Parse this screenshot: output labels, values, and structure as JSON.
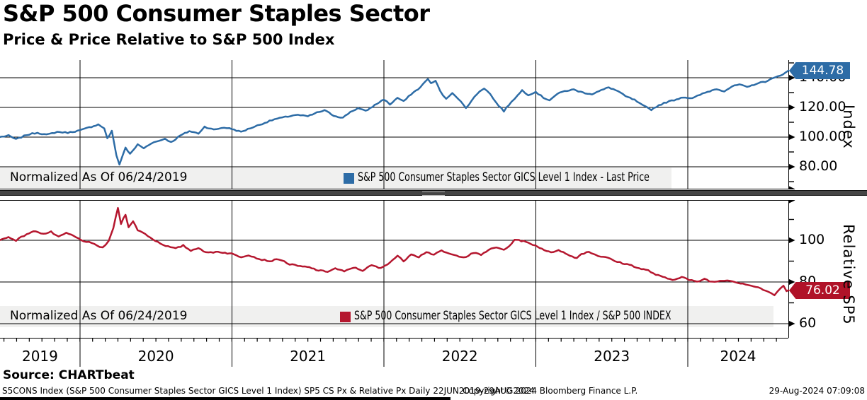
{
  "header": {
    "title": "S&P 500 Consumer Staples Sector",
    "subtitle": "Price & Price Relative to S&P 500 Index"
  },
  "colors": {
    "price_line": "#2d6ca6",
    "relative_line": "#b5172f",
    "badge_price_bg": "#2d6ca6",
    "badge_relative_bg": "#b01228",
    "legend_bg": "#f0f0ef",
    "grid": "#000000",
    "divider": "#454545"
  },
  "source_line": "Source: CHARTbeat",
  "footer": {
    "left": "S5CONS Index (S&P 500 Consumer Staples Sector GICS Level 1 Index) SP5 CS Px & Relative Px  Daily 22JUN2019-29AUG2024",
    "center": "Copyright© 2024 Bloomberg Finance L.P.",
    "right": "29-Aug-2024 07:09:08"
  },
  "x_axis": {
    "year_labels": [
      "2019",
      "2020",
      "2021",
      "2022",
      "2023",
      "2024"
    ],
    "range_decimal_years": [
      2019.474,
      2024.662
    ]
  },
  "chart_data": [
    {
      "type": "line",
      "panel": "top",
      "series_name": "S&P 500 Consumer Staples Sector GICS Level 1 Index - Last Price",
      "axis_label": "Index",
      "last_price": "144.78",
      "legend": {
        "normalized_label": "Normalized As Of 06/24/2019",
        "series_label": "S&P 500 Consumer Staples Sector GICS Level 1 Index - Last Price"
      },
      "y_ticks": [
        {
          "v": 140,
          "label": "140.00"
        },
        {
          "v": 120,
          "label": "120.00"
        },
        {
          "v": 100,
          "label": "100.00"
        },
        {
          "v": 80,
          "label": "80.00"
        }
      ],
      "y_minor": [
        70,
        90,
        110,
        130,
        150
      ],
      "ylim": [
        65,
        152
      ],
      "grid": true,
      "legend_position": "bottom-left",
      "points": [
        [
          2019.47,
          100
        ],
        [
          2019.53,
          101
        ],
        [
          2019.58,
          98.5
        ],
        [
          2019.65,
          101.5
        ],
        [
          2019.72,
          103
        ],
        [
          2019.78,
          101.5
        ],
        [
          2019.85,
          103.5
        ],
        [
          2019.92,
          103
        ],
        [
          2020.0,
          104.5
        ],
        [
          2020.06,
          106.5
        ],
        [
          2020.12,
          108.5
        ],
        [
          2020.16,
          106
        ],
        [
          2020.18,
          99
        ],
        [
          2020.21,
          104
        ],
        [
          2020.24,
          88
        ],
        [
          2020.26,
          81.5
        ],
        [
          2020.3,
          93
        ],
        [
          2020.33,
          88.5
        ],
        [
          2020.38,
          95
        ],
        [
          2020.42,
          92.5
        ],
        [
          2020.47,
          96
        ],
        [
          2020.52,
          97.5
        ],
        [
          2020.56,
          99
        ],
        [
          2020.6,
          96.5
        ],
        [
          2020.66,
          101
        ],
        [
          2020.72,
          104
        ],
        [
          2020.78,
          102.5
        ],
        [
          2020.82,
          107
        ],
        [
          2020.88,
          105
        ],
        [
          2020.95,
          106.5
        ],
        [
          2021.0,
          105.5
        ],
        [
          2021.06,
          103.5
        ],
        [
          2021.12,
          106
        ],
        [
          2021.2,
          109
        ],
        [
          2021.28,
          112
        ],
        [
          2021.35,
          113.5
        ],
        [
          2021.42,
          115
        ],
        [
          2021.5,
          114
        ],
        [
          2021.56,
          116.5
        ],
        [
          2021.61,
          118
        ],
        [
          2021.67,
          114.5
        ],
        [
          2021.73,
          113
        ],
        [
          2021.78,
          117
        ],
        [
          2021.83,
          119.5
        ],
        [
          2021.88,
          117.5
        ],
        [
          2021.94,
          121.5
        ],
        [
          2022.0,
          125.5
        ],
        [
          2022.04,
          122
        ],
        [
          2022.09,
          126.5
        ],
        [
          2022.13,
          124
        ],
        [
          2022.18,
          129
        ],
        [
          2022.24,
          133.5
        ],
        [
          2022.29,
          139.5
        ],
        [
          2022.31,
          136
        ],
        [
          2022.34,
          138
        ],
        [
          2022.37,
          131
        ],
        [
          2022.41,
          125.5
        ],
        [
          2022.45,
          130
        ],
        [
          2022.49,
          126
        ],
        [
          2022.54,
          119.5
        ],
        [
          2022.58,
          125
        ],
        [
          2022.63,
          131
        ],
        [
          2022.66,
          133
        ],
        [
          2022.7,
          129
        ],
        [
          2022.74,
          123
        ],
        [
          2022.79,
          117.5
        ],
        [
          2022.84,
          124
        ],
        [
          2022.88,
          128
        ],
        [
          2022.91,
          131.5
        ],
        [
          2022.95,
          128.5
        ],
        [
          2023.0,
          130.5
        ],
        [
          2023.05,
          126.5
        ],
        [
          2023.09,
          125
        ],
        [
          2023.14,
          129
        ],
        [
          2023.19,
          131
        ],
        [
          2023.25,
          132
        ],
        [
          2023.31,
          130
        ],
        [
          2023.37,
          129
        ],
        [
          2023.43,
          131.5
        ],
        [
          2023.48,
          133.5
        ],
        [
          2023.54,
          131
        ],
        [
          2023.59,
          127.5
        ],
        [
          2023.65,
          125
        ],
        [
          2023.7,
          121.5
        ],
        [
          2023.76,
          118.5
        ],
        [
          2023.81,
          121.5
        ],
        [
          2023.86,
          123.5
        ],
        [
          2023.91,
          125
        ],
        [
          2023.97,
          127
        ],
        [
          2024.03,
          126
        ],
        [
          2024.08,
          128.5
        ],
        [
          2024.13,
          130.5
        ],
        [
          2024.19,
          132.5
        ],
        [
          2024.24,
          131
        ],
        [
          2024.29,
          134
        ],
        [
          2024.34,
          135.5
        ],
        [
          2024.39,
          133.5
        ],
        [
          2024.45,
          136
        ],
        [
          2024.51,
          137.5
        ],
        [
          2024.56,
          139.5
        ],
        [
          2024.61,
          141.5
        ],
        [
          2024.64,
          143.5
        ],
        [
          2024.662,
          144.78
        ]
      ]
    },
    {
      "type": "line",
      "panel": "bottom",
      "series_name": "S&P 500 Consumer Staples Sector GICS Level 1 Index / S&P 500 INDEX",
      "axis_label": "Relative SP5",
      "last_price": "76.02",
      "legend": {
        "normalized_label": "Normalized As Of 06/24/2019",
        "series_label": "S&P 500 Consumer Staples Sector GICS Level 1 Index / S&P 500 INDEX"
      },
      "y_ticks": [
        {
          "v": 100,
          "label": "100"
        },
        {
          "v": 80,
          "label": "80"
        },
        {
          "v": 60,
          "label": "60"
        }
      ],
      "y_minor": [
        70,
        90,
        110
      ],
      "ylim": [
        53,
        119
      ],
      "grid": true,
      "legend_position": "bottom-left",
      "points": [
        [
          2019.47,
          100
        ],
        [
          2019.53,
          101.5
        ],
        [
          2019.58,
          100
        ],
        [
          2019.65,
          103
        ],
        [
          2019.71,
          104.5
        ],
        [
          2019.76,
          103
        ],
        [
          2019.81,
          104
        ],
        [
          2019.86,
          101.5
        ],
        [
          2019.91,
          103.5
        ],
        [
          2019.96,
          102
        ],
        [
          2020.01,
          100
        ],
        [
          2020.06,
          99
        ],
        [
          2020.11,
          97.5
        ],
        [
          2020.15,
          96.5
        ],
        [
          2020.19,
          99.5
        ],
        [
          2020.22,
          106
        ],
        [
          2020.25,
          115.5
        ],
        [
          2020.27,
          108
        ],
        [
          2020.3,
          112.5
        ],
        [
          2020.32,
          106.5
        ],
        [
          2020.35,
          109
        ],
        [
          2020.38,
          105
        ],
        [
          2020.43,
          103
        ],
        [
          2020.48,
          100.5
        ],
        [
          2020.53,
          98.5
        ],
        [
          2020.58,
          97
        ],
        [
          2020.63,
          96
        ],
        [
          2020.68,
          97.5
        ],
        [
          2020.73,
          95
        ],
        [
          2020.78,
          96.5
        ],
        [
          2020.83,
          94
        ],
        [
          2020.91,
          94.5
        ],
        [
          2021.0,
          93.5
        ],
        [
          2021.06,
          92
        ],
        [
          2021.11,
          93
        ],
        [
          2021.18,
          91
        ],
        [
          2021.25,
          90
        ],
        [
          2021.31,
          91
        ],
        [
          2021.38,
          88.5
        ],
        [
          2021.45,
          87.5
        ],
        [
          2021.51,
          87
        ],
        [
          2021.57,
          85.5
        ],
        [
          2021.63,
          85
        ],
        [
          2021.68,
          86.5
        ],
        [
          2021.74,
          85
        ],
        [
          2021.8,
          87
        ],
        [
          2021.86,
          85.5
        ],
        [
          2021.92,
          88
        ],
        [
          2021.98,
          86.5
        ],
        [
          2022.04,
          89.5
        ],
        [
          2022.09,
          92.5
        ],
        [
          2022.13,
          90
        ],
        [
          2022.18,
          93.5
        ],
        [
          2022.23,
          92
        ],
        [
          2022.28,
          94.5
        ],
        [
          2022.33,
          93
        ],
        [
          2022.38,
          95
        ],
        [
          2022.43,
          93.5
        ],
        [
          2022.48,
          92.5
        ],
        [
          2022.54,
          92
        ],
        [
          2022.59,
          94
        ],
        [
          2022.64,
          93
        ],
        [
          2022.69,
          95.5
        ],
        [
          2022.74,
          96.5
        ],
        [
          2022.79,
          95.5
        ],
        [
          2022.84,
          98
        ],
        [
          2022.86,
          100.5
        ],
        [
          2022.92,
          99.5
        ],
        [
          2022.98,
          98
        ],
        [
          2023.04,
          96
        ],
        [
          2023.1,
          94
        ],
        [
          2023.15,
          95.5
        ],
        [
          2023.21,
          93
        ],
        [
          2023.27,
          91.5
        ],
        [
          2023.3,
          93.5
        ],
        [
          2023.35,
          94.5
        ],
        [
          2023.41,
          92.5
        ],
        [
          2023.46,
          92
        ],
        [
          2023.52,
          90
        ],
        [
          2023.57,
          89
        ],
        [
          2023.63,
          88
        ],
        [
          2023.68,
          86.5
        ],
        [
          2023.74,
          85.5
        ],
        [
          2023.79,
          83.5
        ],
        [
          2023.85,
          82
        ],
        [
          2023.9,
          81
        ],
        [
          2023.96,
          82.5
        ],
        [
          2024.01,
          81
        ],
        [
          2024.06,
          80
        ],
        [
          2024.11,
          81.5
        ],
        [
          2024.16,
          80
        ],
        [
          2024.21,
          80.5
        ],
        [
          2024.26,
          81
        ],
        [
          2024.31,
          80
        ],
        [
          2024.38,
          79
        ],
        [
          2024.43,
          78
        ],
        [
          2024.48,
          77
        ],
        [
          2024.53,
          75
        ],
        [
          2024.57,
          73.8
        ],
        [
          2024.61,
          77
        ],
        [
          2024.63,
          78
        ],
        [
          2024.65,
          75.5
        ],
        [
          2024.662,
          76.02
        ]
      ]
    }
  ]
}
